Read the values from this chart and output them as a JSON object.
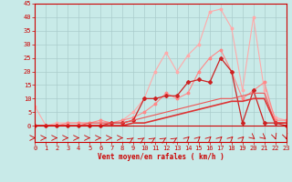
{
  "x": [
    0,
    1,
    2,
    3,
    4,
    5,
    6,
    7,
    8,
    9,
    10,
    11,
    12,
    13,
    14,
    15,
    16,
    17,
    18,
    19,
    20,
    21,
    22,
    23
  ],
  "series": [
    {
      "color": "#FFAAAA",
      "lw": 0.8,
      "marker": "o",
      "markersize": 1.8,
      "values": [
        7,
        0,
        1,
        1,
        1,
        1,
        1,
        1,
        2,
        5,
        10,
        20,
        27,
        20,
        26,
        30,
        42,
        43,
        36,
        13,
        40,
        13,
        3,
        2
      ]
    },
    {
      "color": "#FF8888",
      "lw": 0.8,
      "marker": "o",
      "markersize": 1.8,
      "values": [
        0,
        0,
        0,
        1,
        1,
        1,
        2,
        1,
        2,
        3,
        5,
        8,
        12,
        10,
        12,
        20,
        25,
        28,
        20,
        10,
        13,
        16,
        2,
        2
      ]
    },
    {
      "color": "#CC2222",
      "lw": 0.9,
      "marker": "D",
      "markersize": 2.0,
      "values": [
        0,
        0,
        0,
        0,
        0,
        0,
        0,
        1,
        1,
        2,
        10,
        10,
        11,
        11,
        16,
        17,
        16,
        25,
        20,
        1,
        13,
        1,
        1,
        0
      ]
    },
    {
      "color": "#EE5555",
      "lw": 0.8,
      "marker": null,
      "markersize": 0,
      "values": [
        0,
        0,
        0,
        0,
        0,
        1,
        1,
        1,
        1,
        2,
        3,
        4,
        5,
        6,
        7,
        8,
        9,
        10,
        10,
        11,
        12,
        12,
        1,
        1
      ]
    },
    {
      "color": "#DD3333",
      "lw": 1.2,
      "marker": null,
      "markersize": 0,
      "values": [
        0,
        0,
        0,
        0,
        0,
        0,
        0,
        0,
        0,
        1,
        1,
        2,
        3,
        4,
        5,
        6,
        7,
        8,
        9,
        9,
        10,
        10,
        1,
        1
      ]
    }
  ],
  "xlabel": "Vent moyen/en rafales ( km/h )",
  "xlabel_color": "#CC0000",
  "xlabel_fontsize": 5.5,
  "ylabel_ticks": [
    0,
    5,
    10,
    15,
    20,
    25,
    30,
    35,
    40,
    45
  ],
  "xticks": [
    0,
    1,
    2,
    3,
    4,
    5,
    6,
    7,
    8,
    9,
    10,
    11,
    12,
    13,
    14,
    15,
    16,
    17,
    18,
    19,
    20,
    21,
    22,
    23
  ],
  "xlim": [
    0,
    23
  ],
  "ylim": [
    0,
    45
  ],
  "bg_color": "#C8EAE8",
  "grid_color": "#AACCCC",
  "tick_color": "#CC0000",
  "tick_fontsize": 5.0,
  "spine_color": "#CC0000"
}
